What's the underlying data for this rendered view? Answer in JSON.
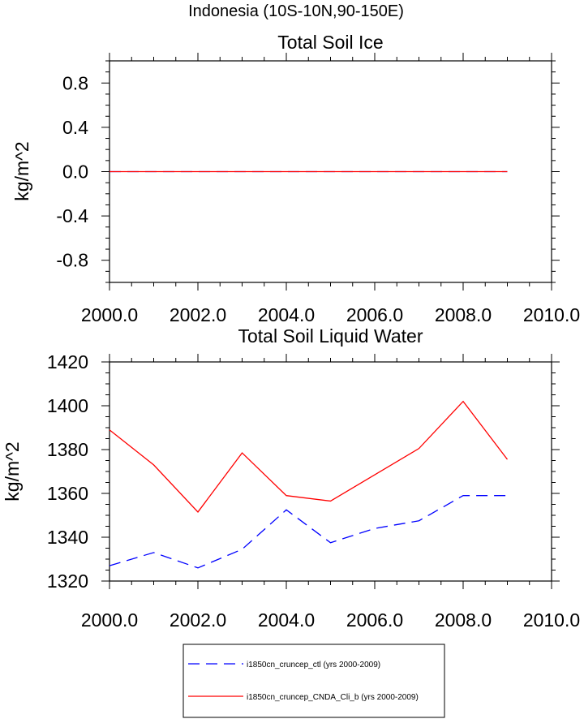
{
  "figure_title": "Indonesia (10S-10N,90-150E)",
  "chart_data": [
    {
      "type": "line",
      "title": "Total Soil Ice",
      "xlabel": "",
      "ylabel": "kg/m^2",
      "xlim": [
        2000,
        2010
      ],
      "ylim": [
        -1.0,
        1.0
      ],
      "x_ticks": [
        2000,
        2002,
        2004,
        2006,
        2008,
        2010
      ],
      "x_tick_labels": [
        "2000.0",
        "2002.0",
        "2004.0",
        "2006.0",
        "2008.0",
        "2010.0"
      ],
      "y_ticks": [
        -0.8,
        -0.4,
        0.0,
        0.4,
        0.8
      ],
      "y_tick_labels": [
        "-0.8",
        "-0.4",
        "0.0",
        "0.4",
        "0.8"
      ],
      "x": [
        2000,
        2001,
        2002,
        2003,
        2004,
        2005,
        2006,
        2007,
        2008,
        2009
      ],
      "series": [
        {
          "name": "i1850cn_cruncep_ctl (yrs 2000-2009)",
          "color": "#0000ff",
          "dash": "dashed",
          "values": [
            0,
            0,
            0,
            0,
            0,
            0,
            0,
            0,
            0,
            0
          ]
        },
        {
          "name": "i1850cn_cruncep_CNDA_Cli_b (yrs 2000-2009)",
          "color": "#ff0000",
          "dash": "solid",
          "values": [
            0,
            0,
            0,
            0,
            0,
            0,
            0,
            0,
            0,
            0
          ]
        }
      ]
    },
    {
      "type": "line",
      "title": "Total Soil Liquid Water",
      "xlabel": "",
      "ylabel": "kg/m^2",
      "xlim": [
        2000,
        2010
      ],
      "ylim": [
        1320,
        1420
      ],
      "x_ticks": [
        2000,
        2002,
        2004,
        2006,
        2008,
        2010
      ],
      "x_tick_labels": [
        "2000.0",
        "2002.0",
        "2004.0",
        "2006.0",
        "2008.0",
        "2010.0"
      ],
      "y_ticks": [
        1320,
        1340,
        1360,
        1380,
        1400,
        1420
      ],
      "y_tick_labels": [
        "1320",
        "1340",
        "1360",
        "1380",
        "1400",
        "1420"
      ],
      "x": [
        2000,
        2001,
        2002,
        2003,
        2004,
        2005,
        2006,
        2007,
        2008,
        2009
      ],
      "series": [
        {
          "name": "i1850cn_cruncep_ctl (yrs 2000-2009)",
          "color": "#0000ff",
          "dash": "dashed",
          "values": [
            1327,
            1333,
            1326,
            1334.5,
            1352.5,
            1337.5,
            1344,
            1347.5,
            1359,
            1359
          ]
        },
        {
          "name": "i1850cn_cruncep_CNDA_Cli_b (yrs 2000-2009)",
          "color": "#ff0000",
          "dash": "solid",
          "values": [
            1389,
            1373,
            1351.5,
            1378.5,
            1359,
            1356.5,
            1368.5,
            1380.5,
            1402,
            1375.5
          ]
        }
      ]
    }
  ],
  "legend": {
    "placement": "bottom-center",
    "entries": [
      {
        "label": "i1850cn_cruncep_ctl (yrs 2000-2009)",
        "color": "#0000ff",
        "dash": "dashed"
      },
      {
        "label": "i1850cn_cruncep_CNDA_Cli_b (yrs 2000-2009)",
        "color": "#ff0000",
        "dash": "solid"
      }
    ]
  }
}
